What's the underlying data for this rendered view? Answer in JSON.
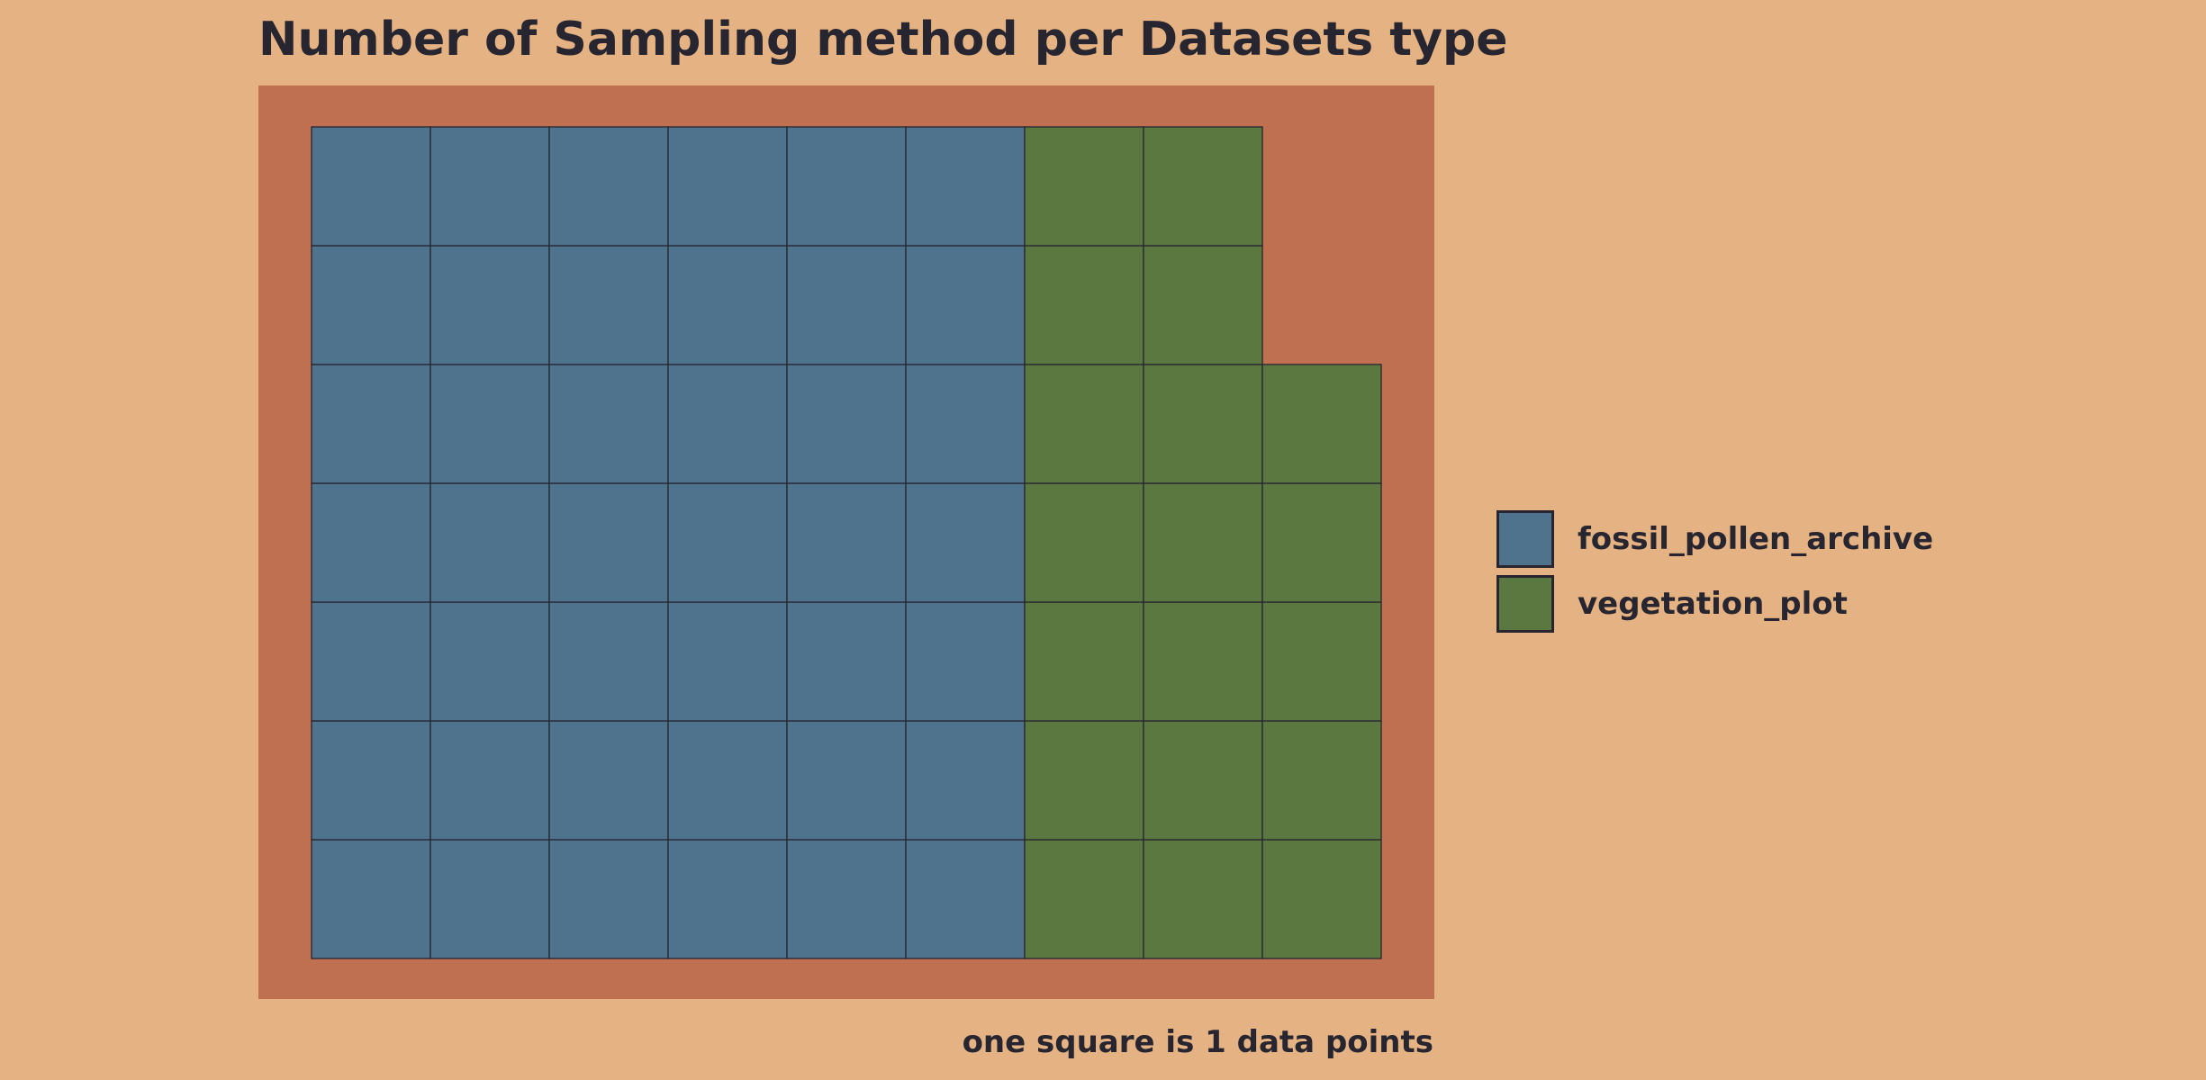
{
  "chart_data": {
    "type": "waffle",
    "title": "Number of Sampling method per Datasets type",
    "caption": "one square is 1 data points",
    "rows": 7,
    "units_per_square": 1,
    "fill_order": "column-wise from bottom-left",
    "series": [
      {
        "name": "fossil_pollen_archive",
        "value": 42,
        "color": "#4F728D"
      },
      {
        "name": "vegetation_plot",
        "value": 19,
        "color": "#5B7841"
      }
    ],
    "legend_position": "right",
    "grid": false
  },
  "style": {
    "background": "#E4B283",
    "panel_background": "#BE7050",
    "square_border": "#27252F",
    "text_color": "#27252F"
  }
}
